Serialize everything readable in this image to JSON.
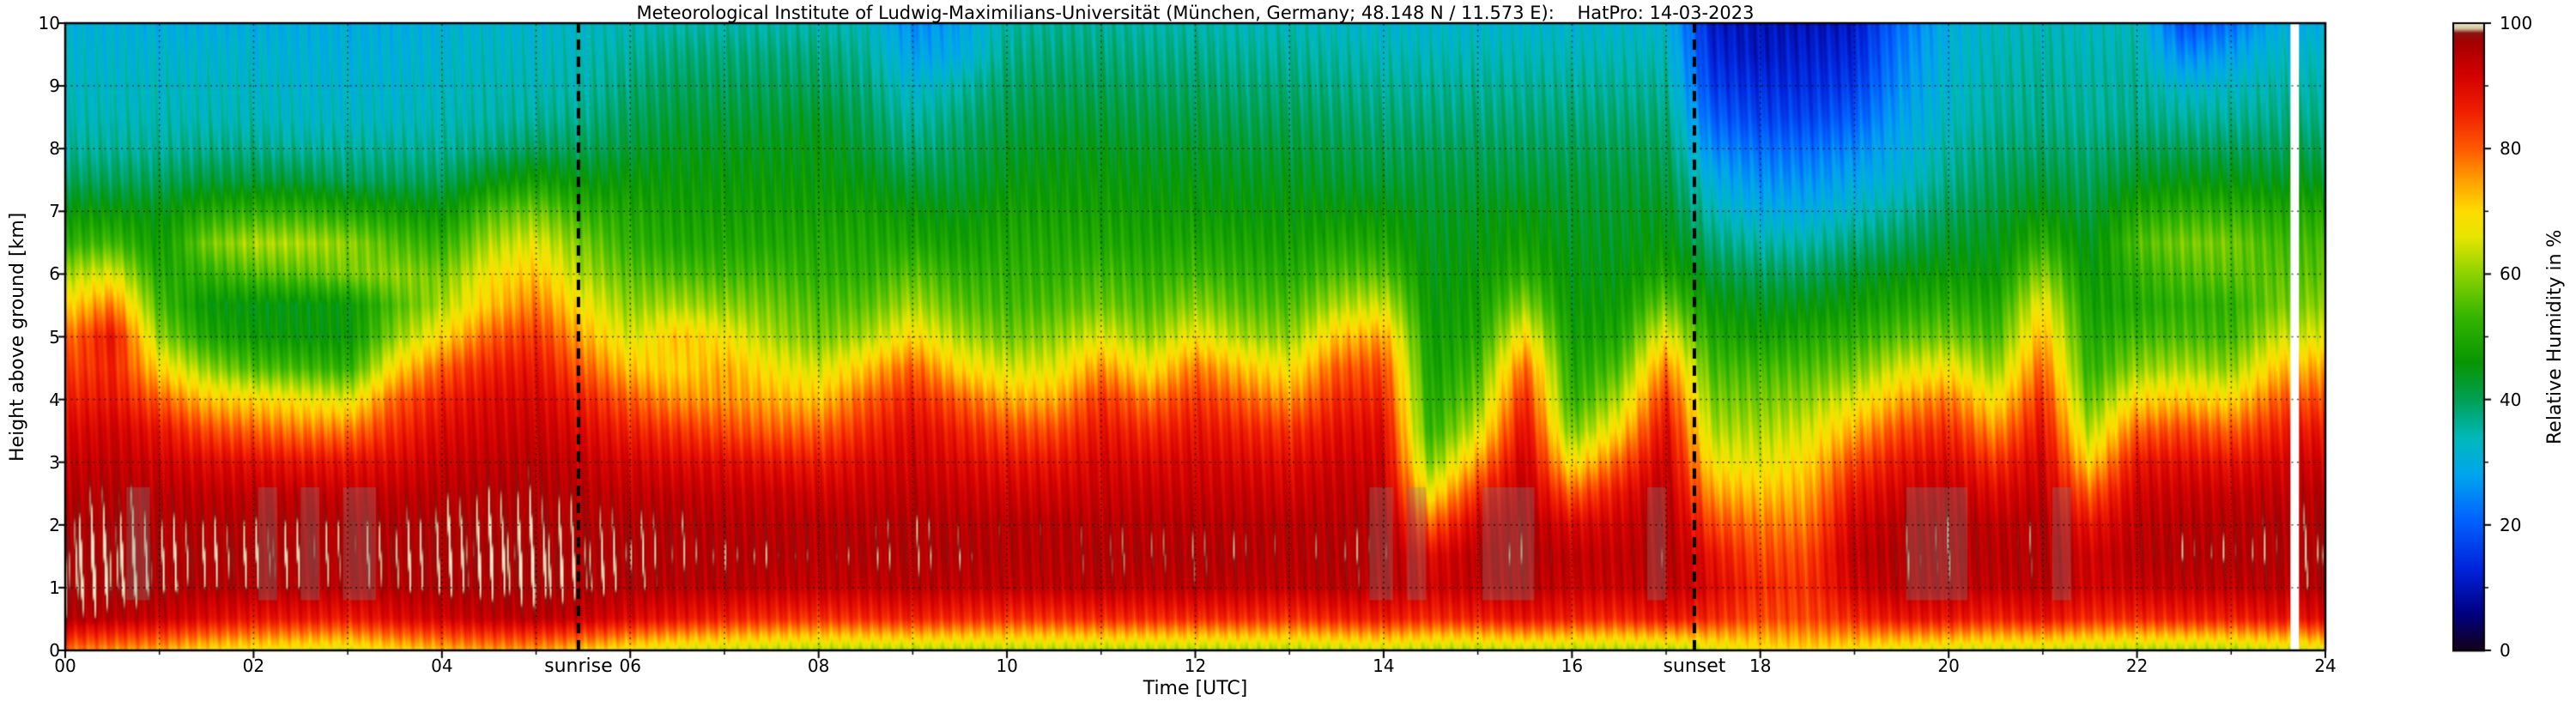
{
  "chart_data": {
    "type": "heatmap",
    "title": "Meteorological Institute of Ludwig-Maximilians-Universität (München, Germany; 48.148 N / 11.573 E):    HatPro: 14-03-2023",
    "xlabel": "Time [UTC]",
    "ylabel": "Height above ground [km]",
    "colorbar_label": "Relative Humidity in %",
    "x_range": [
      0,
      24
    ],
    "y_range": [
      0,
      10
    ],
    "value_range": [
      0,
      100
    ],
    "x_ticks": [
      0,
      2,
      4,
      6,
      8,
      10,
      12,
      14,
      16,
      18,
      20,
      22,
      24
    ],
    "x_tick_labels": [
      "00",
      "02",
      "04",
      "06",
      "08",
      "10",
      "12",
      "14",
      "16",
      "18",
      "20",
      "22",
      "24"
    ],
    "y_ticks": [
      0,
      1,
      2,
      3,
      4,
      5,
      6,
      7,
      8,
      9,
      10
    ],
    "y_tick_labels": [
      "0",
      "1",
      "2",
      "3",
      "4",
      "5",
      "6",
      "7",
      "8",
      "9",
      "10"
    ],
    "colorbar_ticks": [
      0,
      20,
      40,
      60,
      80,
      100
    ],
    "colorbar_tick_labels": [
      "0",
      "20",
      "40",
      "60",
      "80",
      "100"
    ],
    "colorbar_minor_tick_step": 10,
    "grid": {
      "style": "dotted",
      "x_step_hours": 1,
      "y_step_km": 1
    },
    "sun_events": [
      {
        "label": "sunrise",
        "time_utc": 5.45
      },
      {
        "label": "sunset",
        "time_utc": 17.3
      }
    ],
    "colormap_stops": [
      [
        0,
        "#140019"
      ],
      [
        6,
        "#000082"
      ],
      [
        13,
        "#0023dc"
      ],
      [
        21,
        "#0064ff"
      ],
      [
        28,
        "#00a5ef"
      ],
      [
        34,
        "#00b9b9"
      ],
      [
        40,
        "#00a055"
      ],
      [
        46,
        "#089600"
      ],
      [
        53,
        "#32b400"
      ],
      [
        60,
        "#8cd200"
      ],
      [
        66,
        "#e6e600"
      ],
      [
        70,
        "#ffdc00"
      ],
      [
        75,
        "#ffa000"
      ],
      [
        80,
        "#ff5a00"
      ],
      [
        86,
        "#f01e00"
      ],
      [
        92,
        "#d20000"
      ],
      [
        97,
        "#a50000"
      ],
      [
        98.5,
        "#8c1414"
      ],
      [
        99.2,
        "#cdc39b"
      ],
      [
        100,
        "#f0e6cd"
      ]
    ],
    "times": [
      0,
      0.5,
      1,
      1.5,
      2,
      2.5,
      3,
      3.5,
      4,
      4.5,
      5,
      5.5,
      6,
      6.5,
      7,
      7.5,
      8,
      8.5,
      9,
      9.5,
      10,
      10.5,
      11,
      11.5,
      12,
      12.5,
      13,
      13.5,
      14,
      14.5,
      15,
      15.5,
      16,
      16.5,
      17,
      17.5,
      18,
      18.5,
      19,
      19.5,
      20,
      20.5,
      21,
      21.5,
      22,
      22.5,
      23,
      23.5,
      24
    ],
    "heights_km": [
      0,
      0.5,
      1,
      1.5,
      2,
      2.5,
      3,
      3.5,
      4,
      4.5,
      5,
      5.5,
      6,
      6.5,
      7,
      7.5,
      8,
      8.5,
      9,
      9.5,
      10
    ],
    "rh_percent": [
      [
        78,
        96,
        98,
        98,
        97,
        95,
        93,
        90,
        86,
        82,
        78,
        70,
        62,
        52,
        46,
        40,
        36,
        34,
        33,
        32,
        31
      ],
      [
        76,
        95,
        98,
        98,
        97,
        96,
        94,
        92,
        88,
        86,
        88,
        78,
        66,
        54,
        46,
        40,
        36,
        34,
        33,
        32,
        31
      ],
      [
        74,
        93,
        97,
        97,
        96,
        95,
        92,
        88,
        80,
        70,
        60,
        54,
        50,
        47,
        45,
        40,
        36,
        34,
        33,
        32,
        30
      ],
      [
        70,
        90,
        96,
        97,
        96,
        94,
        90,
        82,
        72,
        60,
        50,
        46,
        52,
        58,
        50,
        42,
        37,
        34,
        33,
        32,
        30
      ],
      [
        68,
        88,
        96,
        97,
        96,
        94,
        89,
        80,
        70,
        55,
        47,
        45,
        55,
        62,
        52,
        42,
        37,
        34,
        33,
        32,
        30
      ],
      [
        67,
        88,
        96,
        97,
        96,
        94,
        88,
        78,
        68,
        54,
        46,
        45,
        56,
        62,
        52,
        42,
        36,
        33,
        32,
        31,
        30
      ],
      [
        66,
        87,
        95,
        96,
        96,
        93,
        88,
        78,
        66,
        52,
        46,
        46,
        58,
        60,
        50,
        40,
        36,
        33,
        32,
        31,
        30
      ],
      [
        70,
        90,
        96,
        97,
        96,
        94,
        90,
        85,
        80,
        70,
        60,
        55,
        60,
        55,
        48,
        40,
        36,
        33,
        32,
        31,
        30
      ],
      [
        73,
        92,
        97,
        97,
        97,
        95,
        93,
        90,
        86,
        80,
        70,
        62,
        58,
        52,
        46,
        40,
        36,
        34,
        33,
        32,
        31
      ],
      [
        75,
        94,
        97,
        98,
        97,
        96,
        94,
        92,
        90,
        86,
        80,
        72,
        68,
        62,
        55,
        45,
        38,
        35,
        34,
        33,
        32
      ],
      [
        75,
        95,
        98,
        98,
        97,
        96,
        95,
        93,
        91,
        88,
        84,
        78,
        72,
        66,
        58,
        48,
        40,
        36,
        34,
        33,
        32
      ],
      [
        72,
        93,
        97,
        97,
        96,
        95,
        93,
        90,
        86,
        80,
        74,
        68,
        62,
        58,
        52,
        45,
        40,
        37,
        35,
        34,
        33
      ],
      [
        68,
        90,
        96,
        97,
        96,
        94,
        91,
        86,
        80,
        72,
        65,
        60,
        56,
        52,
        50,
        46,
        42,
        40,
        38,
        36,
        34
      ],
      [
        65,
        88,
        95,
        96,
        96,
        94,
        90,
        84,
        76,
        70,
        72,
        62,
        55,
        50,
        48,
        46,
        44,
        42,
        40,
        38,
        35
      ],
      [
        64,
        86,
        95,
        96,
        95,
        93,
        89,
        82,
        76,
        74,
        68,
        60,
        54,
        50,
        48,
        46,
        44,
        42,
        40,
        38,
        35
      ],
      [
        63,
        85,
        94,
        96,
        95,
        93,
        88,
        80,
        74,
        68,
        62,
        58,
        54,
        50,
        48,
        46,
        44,
        42,
        40,
        38,
        35
      ],
      [
        62,
        84,
        94,
        95,
        95,
        92,
        87,
        80,
        72,
        65,
        58,
        55,
        52,
        50,
        48,
        46,
        45,
        43,
        40,
        38,
        35
      ],
      [
        62,
        85,
        94,
        96,
        95,
        93,
        90,
        85,
        80,
        72,
        62,
        56,
        52,
        50,
        48,
        45,
        42,
        40,
        38,
        36,
        34
      ],
      [
        62,
        86,
        95,
        96,
        96,
        94,
        92,
        90,
        86,
        80,
        70,
        62,
        56,
        50,
        46,
        42,
        38,
        35,
        32,
        28,
        25
      ],
      [
        62,
        85,
        94,
        96,
        95,
        93,
        90,
        86,
        80,
        70,
        62,
        56,
        52,
        48,
        45,
        42,
        40,
        38,
        35,
        30,
        28
      ],
      [
        62,
        84,
        94,
        95,
        95,
        92,
        88,
        82,
        74,
        65,
        58,
        54,
        52,
        50,
        48,
        45,
        43,
        41,
        39,
        37,
        35
      ],
      [
        62,
        84,
        94,
        95,
        95,
        92,
        88,
        82,
        74,
        66,
        60,
        55,
        52,
        50,
        48,
        46,
        44,
        42,
        40,
        38,
        36
      ],
      [
        62,
        85,
        95,
        96,
        95,
        93,
        91,
        88,
        84,
        76,
        66,
        58,
        54,
        50,
        48,
        46,
        44,
        42,
        40,
        38,
        36
      ],
      [
        62,
        85,
        94,
        96,
        95,
        93,
        90,
        85,
        78,
        68,
        60,
        55,
        52,
        49,
        47,
        45,
        43,
        41,
        39,
        37,
        35
      ],
      [
        62,
        85,
        95,
        96,
        95,
        93,
        91,
        88,
        84,
        78,
        68,
        60,
        54,
        50,
        47,
        45,
        43,
        41,
        39,
        37,
        35
      ],
      [
        62,
        85,
        94,
        96,
        95,
        93,
        90,
        86,
        80,
        72,
        62,
        56,
        52,
        49,
        46,
        44,
        42,
        40,
        38,
        36,
        34
      ],
      [
        62,
        84,
        94,
        95,
        95,
        92,
        89,
        84,
        76,
        68,
        60,
        55,
        51,
        48,
        46,
        44,
        42,
        40,
        38,
        36,
        34
      ],
      [
        63,
        86,
        95,
        96,
        95,
        94,
        92,
        89,
        85,
        80,
        72,
        62,
        55,
        50,
        46,
        43,
        41,
        39,
        37,
        35,
        33
      ],
      [
        64,
        87,
        95,
        96,
        96,
        94,
        92,
        90,
        86,
        82,
        75,
        65,
        56,
        50,
        46,
        42,
        40,
        38,
        36,
        34,
        32
      ],
      [
        62,
        85,
        92,
        90,
        80,
        68,
        58,
        52,
        50,
        48,
        47,
        46,
        45,
        44,
        43,
        42,
        40,
        38,
        36,
        34,
        32
      ],
      [
        62,
        86,
        94,
        95,
        92,
        85,
        75,
        65,
        58,
        54,
        50,
        48,
        46,
        45,
        44,
        42,
        40,
        38,
        36,
        34,
        32
      ],
      [
        63,
        88,
        95,
        96,
        96,
        95,
        93,
        90,
        86,
        80,
        70,
        60,
        52,
        48,
        45,
        42,
        40,
        38,
        36,
        34,
        32
      ],
      [
        62,
        86,
        93,
        94,
        90,
        80,
        68,
        58,
        52,
        50,
        48,
        46,
        45,
        44,
        43,
        42,
        40,
        38,
        36,
        34,
        32
      ],
      [
        62,
        85,
        93,
        94,
        92,
        88,
        80,
        70,
        62,
        55,
        50,
        47,
        45,
        44,
        43,
        42,
        40,
        38,
        36,
        34,
        32
      ],
      [
        62,
        88,
        95,
        96,
        96,
        95,
        93,
        90,
        85,
        78,
        68,
        58,
        50,
        46,
        44,
        42,
        40,
        38,
        36,
        34,
        32
      ],
      [
        65,
        85,
        90,
        88,
        82,
        75,
        68,
        62,
        58,
        54,
        50,
        46,
        42,
        38,
        34,
        30,
        25,
        20,
        16,
        13,
        11
      ],
      [
        68,
        82,
        85,
        82,
        78,
        72,
        66,
        62,
        58,
        54,
        48,
        44,
        40,
        35,
        30,
        26,
        22,
        17,
        14,
        11,
        10
      ],
      [
        70,
        82,
        84,
        82,
        78,
        74,
        70,
        65,
        60,
        55,
        50,
        45,
        40,
        35,
        30,
        26,
        22,
        17,
        14,
        12,
        10
      ],
      [
        68,
        85,
        92,
        94,
        92,
        88,
        82,
        74,
        66,
        58,
        52,
        47,
        43,
        38,
        33,
        29,
        25,
        20,
        16,
        13,
        11
      ],
      [
        66,
        88,
        95,
        96,
        95,
        92,
        88,
        82,
        74,
        65,
        56,
        50,
        45,
        40,
        36,
        32,
        30,
        28,
        26,
        24,
        22
      ],
      [
        65,
        88,
        95,
        96,
        96,
        94,
        90,
        85,
        78,
        68,
        58,
        52,
        47,
        43,
        40,
        37,
        35,
        33,
        32,
        31,
        30
      ],
      [
        64,
        86,
        94,
        95,
        94,
        90,
        84,
        76,
        68,
        60,
        54,
        50,
        46,
        44,
        42,
        40,
        38,
        36,
        35,
        34,
        33
      ],
      [
        64,
        88,
        95,
        96,
        96,
        94,
        92,
        89,
        85,
        80,
        74,
        68,
        60,
        52,
        46,
        42,
        39,
        37,
        36,
        35,
        34
      ],
      [
        63,
        85,
        92,
        92,
        88,
        80,
        70,
        62,
        56,
        52,
        50,
        48,
        46,
        44,
        42,
        40,
        38,
        36,
        35,
        34,
        33
      ],
      [
        62,
        85,
        93,
        95,
        94,
        92,
        88,
        80,
        70,
        60,
        54,
        50,
        52,
        55,
        50,
        44,
        40,
        37,
        36,
        35,
        34
      ],
      [
        62,
        86,
        94,
        96,
        95,
        93,
        89,
        82,
        72,
        62,
        55,
        52,
        55,
        58,
        52,
        45,
        40,
        36,
        32,
        25,
        18
      ],
      [
        62,
        86,
        94,
        96,
        95,
        93,
        88,
        80,
        70,
        60,
        54,
        52,
        56,
        58,
        52,
        45,
        40,
        36,
        33,
        28,
        22
      ],
      [
        64,
        88,
        95,
        96,
        96,
        94,
        91,
        86,
        80,
        72,
        64,
        58,
        56,
        54,
        50,
        44,
        40,
        37,
        35,
        33,
        30
      ],
      [
        66,
        90,
        96,
        97,
        96,
        95,
        92,
        88,
        82,
        75,
        66,
        60,
        56,
        54,
        50,
        44,
        40,
        37,
        35,
        33,
        30
      ]
    ],
    "missing_data": [
      [
        23.63,
        23.72
      ]
    ],
    "quality_flag_bands": {
      "height_range_km": [
        0.8,
        2.6
      ],
      "color": "rgba(130,130,130,0.32)",
      "intervals": [
        [
          0.65,
          0.9
        ],
        [
          2.05,
          2.25
        ],
        [
          2.5,
          2.7
        ],
        [
          2.95,
          3.3
        ],
        [
          13.85,
          14.1
        ],
        [
          14.25,
          14.45
        ],
        [
          15.05,
          15.6
        ],
        [
          16.8,
          17.0
        ],
        [
          19.55,
          20.2
        ],
        [
          21.1,
          21.3
        ]
      ]
    }
  }
}
